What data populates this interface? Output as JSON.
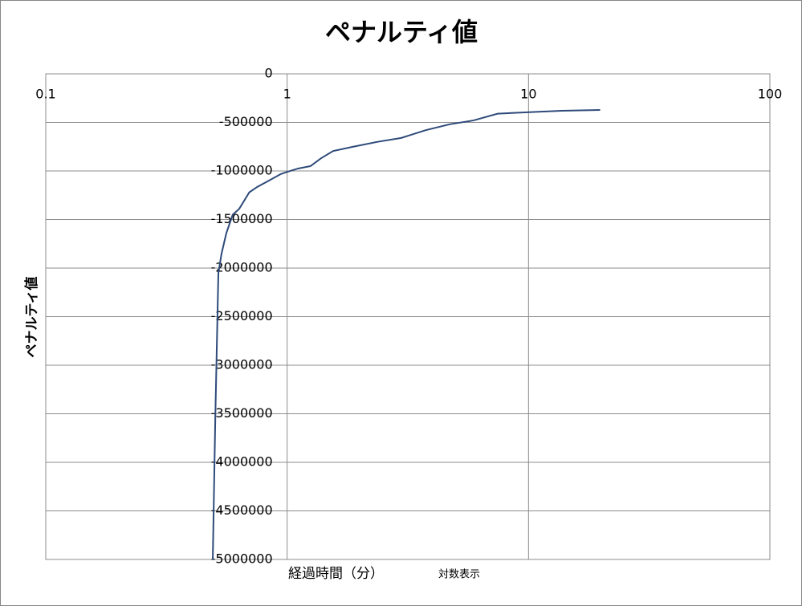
{
  "chart_data": {
    "type": "line",
    "title": "ペナルティ値",
    "x_label": "経過時間（分）",
    "x_label_note": "対数表示",
    "y_label": "ペナルティ値",
    "xscale": "log",
    "grid": true,
    "xlim": [
      0.1,
      100
    ],
    "xticks": [
      0.1,
      1,
      10,
      100
    ],
    "ylim": [
      -5000000,
      0
    ],
    "yticks": [
      0,
      -500000,
      -1000000,
      -1500000,
      -2000000,
      -2500000,
      -3000000,
      -3500000,
      -4000000,
      -4500000,
      -5000000
    ],
    "x_axis_crosses": 1,
    "series": [
      {
        "name": "ペナルティ値",
        "color": "#2e4a7a",
        "x": [
          0.492,
          0.504,
          0.519,
          0.535,
          0.56,
          0.595,
          0.633,
          0.697,
          0.751,
          0.839,
          0.944,
          1.0,
          1.11,
          1.25,
          1.38,
          1.55,
          1.88,
          2.37,
          2.97,
          3.75,
          4.7,
          5.91,
          7.45,
          10.1,
          13.7,
          19.8
        ],
        "values": [
          -5000000,
          -3537000,
          -2050000,
          -1850000,
          -1640000,
          -1450000,
          -1390000,
          -1220000,
          -1165000,
          -1100000,
          -1030000,
          -1010000,
          -975000,
          -950000,
          -870000,
          -795000,
          -750000,
          -700000,
          -660000,
          -580000,
          -520000,
          -480000,
          -410000,
          -395000,
          -380000,
          -372000
        ]
      }
    ]
  }
}
